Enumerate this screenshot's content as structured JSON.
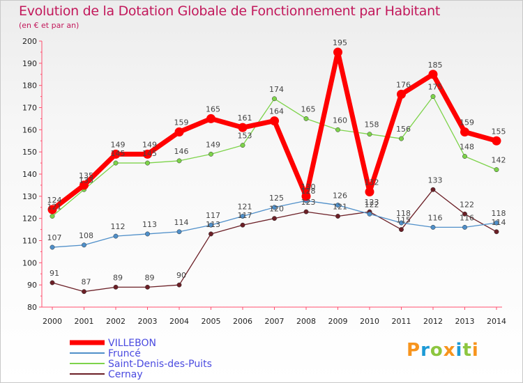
{
  "chart_data": {
    "type": "line",
    "title": "Evolution de la Dotation Globale de Fonctionnement par Habitant",
    "subtitle": "(en € et par an)",
    "xlabel": "",
    "ylabel": "",
    "ylim": [
      80,
      200
    ],
    "yticks": [
      80,
      90,
      100,
      110,
      120,
      130,
      140,
      150,
      160,
      170,
      180,
      190,
      200
    ],
    "categories": [
      "2000",
      "2001",
      "2002",
      "2003",
      "2004",
      "2005",
      "2006",
      "2007",
      "2008",
      "2009",
      "2010",
      "2011",
      "2012",
      "2013",
      "2014"
    ],
    "series": [
      {
        "name": "VILLEBON",
        "color": "#ff0000",
        "values": [
          124,
          135,
          149,
          149,
          159,
          165,
          161,
          164,
          130,
          195,
          132,
          176,
          185,
          159,
          155
        ]
      },
      {
        "name": "Fruncé",
        "color": "#4f8fc9",
        "values": [
          107,
          108,
          112,
          113,
          114,
          117,
          121,
          125,
          128,
          126,
          122,
          118,
          116,
          116,
          118
        ]
      },
      {
        "name": "Saint-Denis-des-Puits",
        "color": "#7dd34a",
        "values": [
          121,
          133,
          145,
          145,
          146,
          149,
          153,
          174,
          165,
          160,
          158,
          156,
          175,
          148,
          142
        ]
      },
      {
        "name": "Cernay",
        "color": "#6b1f26",
        "values": [
          91,
          87,
          89,
          89,
          90,
          113,
          117,
          120,
          123,
          121,
          123,
          115,
          133,
          122,
          114
        ]
      }
    ],
    "legend_position": "bottom-left"
  },
  "logo": {
    "text": "Proxiti",
    "colors": [
      "#f7941d",
      "#1c9ad6",
      "#8dc63f"
    ]
  }
}
